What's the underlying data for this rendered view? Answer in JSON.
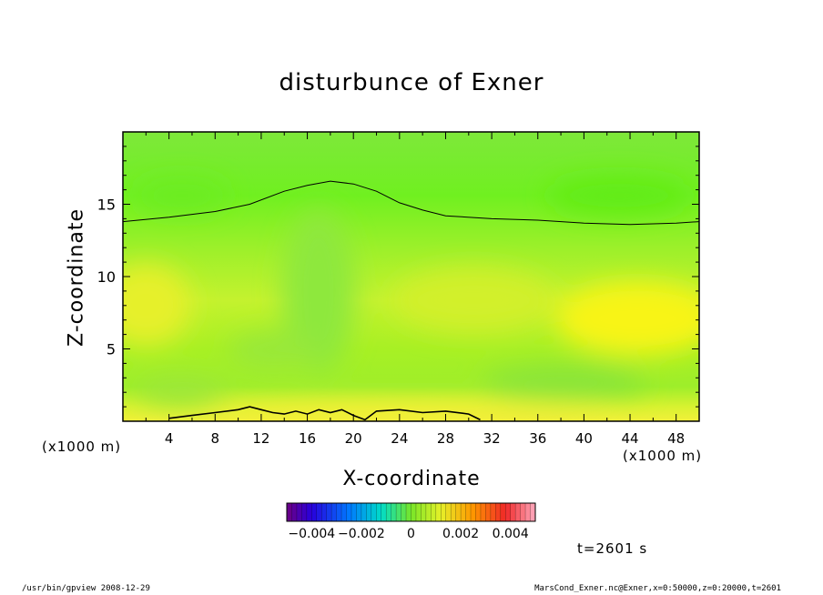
{
  "chart_data": {
    "type": "heatmap",
    "title": "disturbunce of Exner",
    "xlabel": "X-coordinate",
    "ylabel": "Z-coordinate",
    "x_unit": "(x1000 m)",
    "y_unit": "(x1000 m)",
    "xlim": [
      0,
      50
    ],
    "ylim": [
      0,
      20
    ],
    "x_ticks": [
      4,
      8,
      12,
      16,
      20,
      24,
      28,
      32,
      36,
      40,
      44,
      48
    ],
    "y_ticks": [
      5,
      10,
      15
    ],
    "contour_upper": [
      [
        0,
        13.8
      ],
      [
        4,
        14.1
      ],
      [
        8,
        14.5
      ],
      [
        11,
        15.0
      ],
      [
        14,
        15.9
      ],
      [
        16,
        16.3
      ],
      [
        18,
        16.6
      ],
      [
        20,
        16.4
      ],
      [
        22,
        15.9
      ],
      [
        24,
        15.1
      ],
      [
        26,
        14.6
      ],
      [
        28,
        14.2
      ],
      [
        32,
        14.0
      ],
      [
        36,
        13.9
      ],
      [
        40,
        13.7
      ],
      [
        44,
        13.6
      ],
      [
        48,
        13.7
      ],
      [
        50,
        13.8
      ]
    ],
    "contour_lower": [
      [
        4,
        0.2
      ],
      [
        6,
        0.4
      ],
      [
        8,
        0.6
      ],
      [
        10,
        0.8
      ],
      [
        11,
        1.0
      ],
      [
        12,
        0.8
      ],
      [
        13,
        0.6
      ],
      [
        14,
        0.5
      ],
      [
        15,
        0.7
      ],
      [
        16,
        0.5
      ],
      [
        17,
        0.8
      ],
      [
        18,
        0.6
      ],
      [
        19,
        0.8
      ],
      [
        20,
        0.4
      ],
      [
        21,
        0.1
      ],
      [
        22,
        0.7
      ],
      [
        24,
        0.8
      ],
      [
        26,
        0.6
      ],
      [
        28,
        0.7
      ],
      [
        30,
        0.5
      ],
      [
        31,
        0.1
      ]
    ],
    "colorbar": {
      "min": -0.005,
      "max": 0.005,
      "tick_labels": [
        "−0.004",
        "−0.002",
        "0",
        "0.002",
        "0.004"
      ]
    },
    "time_label": "t=2601 s"
  },
  "footer": {
    "left": "/usr/bin/gpview  2008-12-29",
    "right": "MarsCond_Exner.nc@Exner,x=0:50000,z=0:20000,t=2601"
  }
}
